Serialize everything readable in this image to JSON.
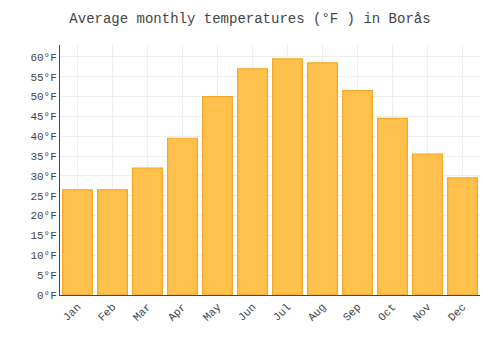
{
  "chart_data": {
    "type": "bar",
    "title": "Average monthly temperatures (°F ) in Borås",
    "categories": [
      "Jan",
      "Feb",
      "Mar",
      "Apr",
      "May",
      "Jun",
      "Jul",
      "Aug",
      "Sep",
      "Oct",
      "Nov",
      "Dec"
    ],
    "values": [
      26.5,
      26.5,
      32,
      39.5,
      50,
      57,
      59.5,
      58.5,
      51.5,
      44.5,
      35.5,
      29.5
    ],
    "color": "#FFC04C",
    "ylim": [
      0,
      63
    ],
    "yticks": [
      {
        "value": 0,
        "label": "0°F"
      },
      {
        "value": 5,
        "label": "5°F"
      },
      {
        "value": 10,
        "label": "10°F"
      },
      {
        "value": 15,
        "label": "15°F"
      },
      {
        "value": 20,
        "label": "20°F"
      },
      {
        "value": 25,
        "label": "25°F"
      },
      {
        "value": 30,
        "label": "30°F"
      },
      {
        "value": 35,
        "label": "35°F"
      },
      {
        "value": 40,
        "label": "40°F"
      },
      {
        "value": 45,
        "label": "45°F"
      },
      {
        "value": 50,
        "label": "50°F"
      },
      {
        "value": 55,
        "label": "55°F"
      },
      {
        "value": 60,
        "label": "60°F"
      }
    ],
    "grid": true
  }
}
